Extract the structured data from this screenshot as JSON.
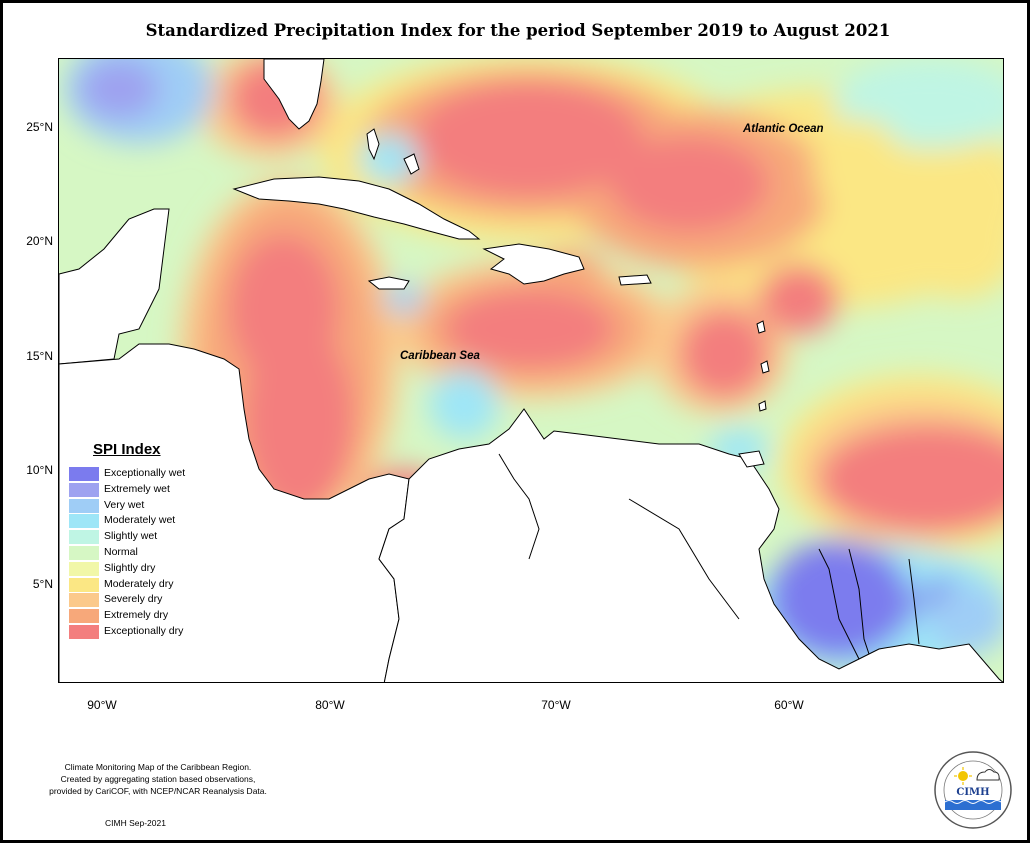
{
  "title": "Standardized Precipitation Index for the period September 2019 to August 2021",
  "map": {
    "latitude_labels": [
      "25°N",
      "20°N",
      "15°N",
      "10°N",
      "5°N"
    ],
    "longitude_labels": [
      "90°W",
      "80°W",
      "70°W",
      "60°W"
    ],
    "region_labels": {
      "atlantic": "Atlantic Ocean",
      "caribbean": "Caribbean Sea"
    }
  },
  "legend": {
    "title": "SPI Index",
    "items": [
      {
        "label": "Exceptionally wet",
        "color": "#7b7bee"
      },
      {
        "label": "Extremely wet",
        "color": "#9ea2f0"
      },
      {
        "label": "Very wet",
        "color": "#9fcdf6"
      },
      {
        "label": "Moderately wet",
        "color": "#9ee6f7"
      },
      {
        "label": "Slightly wet",
        "color": "#bff5e4"
      },
      {
        "label": "Normal",
        "color": "#d6f7c4"
      },
      {
        "label": "Slightly dry",
        "color": "#f1f7a8"
      },
      {
        "label": "Moderately dry",
        "color": "#fbe784"
      },
      {
        "label": "Severely dry",
        "color": "#fbc98b"
      },
      {
        "label": "Extremely dry",
        "color": "#f7a87a"
      },
      {
        "label": "Exceptionally dry",
        "color": "#f37e7e"
      }
    ]
  },
  "credit": {
    "line1": "Climate Monitoring Map of the Caribbean Region.",
    "line2": "Created by aggregating station based observations,",
    "line3": "provided by CariCOF, with NCEP/NCAR Reanalysis Data.",
    "date": "CIMH Sep-2021"
  },
  "logo": {
    "text": "CIMH",
    "icon": "cimh-logo-icon"
  }
}
